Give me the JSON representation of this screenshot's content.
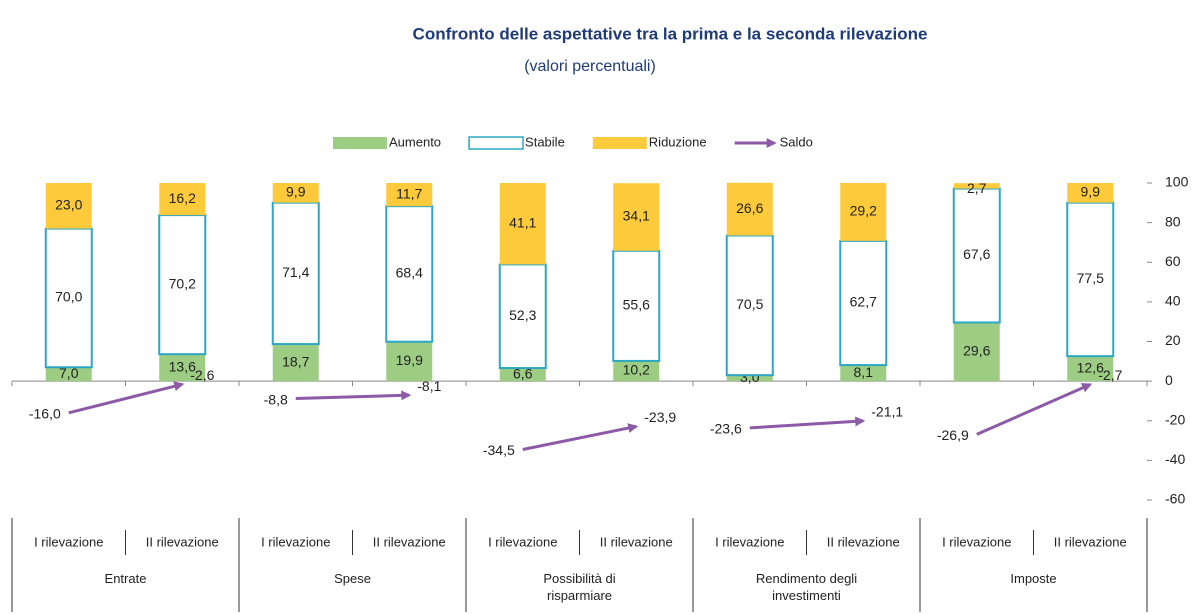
{
  "chart_data": {
    "type": "stacked_bar",
    "title": "Confronto delle aspettative tra la prima e la seconda rilevazione",
    "subtitle": "(valori percentuali)",
    "categories": [
      "I rilevazione",
      "II rilevazione",
      "I rilevazione",
      "II rilevazione",
      "I rilevazione",
      "II rilevazione",
      "I rilevazione",
      "II rilevazione",
      "I rilevazione",
      "II rilevazione"
    ],
    "groups": [
      "Entrate",
      "Spese",
      "Possibilità di risparmiare",
      "Rendimento degli investimenti",
      "Imposte"
    ],
    "series": [
      {
        "name": "Aumento",
        "color": "#9dcc83",
        "values": [
          7.0,
          13.6,
          18.7,
          19.9,
          6.6,
          10.2,
          3.0,
          8.1,
          29.6,
          12.6
        ],
        "value_labels": [
          "7,0",
          "13,6",
          "18,7",
          "19,9",
          "6,6",
          "10,2",
          "3,0",
          "8,1",
          "29,6",
          "12,6"
        ]
      },
      {
        "name": "Stabile",
        "color": "#2ba7c3",
        "values": [
          70.0,
          70.2,
          71.4,
          68.4,
          52.3,
          55.6,
          70.5,
          62.7,
          67.6,
          77.5
        ],
        "value_labels": [
          "70,0",
          "70,2",
          "71,4",
          "68,4",
          "52,3",
          "55,6",
          "70,5",
          "62,7",
          "67,6",
          "77,5"
        ]
      },
      {
        "name": "Riduzione",
        "color": "#fdca3c",
        "values": [
          23.0,
          16.2,
          9.9,
          11.7,
          41.1,
          34.1,
          26.6,
          29.2,
          2.7,
          9.9
        ],
        "value_labels": [
          "23,0",
          "16,2",
          "9,9",
          "11,7",
          "41,1",
          "34,1",
          "26,6",
          "29,2",
          "2,7",
          "9,9"
        ]
      },
      {
        "name": "Saldo",
        "color": "#8c5aa6",
        "values": [
          -16.0,
          -2.6,
          -8.8,
          -8.1,
          -34.5,
          -23.9,
          -23.6,
          -21.1,
          -26.9,
          -2.7
        ],
        "value_labels": [
          "-16,0",
          "-2,6",
          "-8,8",
          "-8,1",
          "-34,5",
          "-23,9",
          "-23,6",
          "-21,1",
          "-26,9",
          "-2,7"
        ]
      }
    ],
    "ylim": [
      -60,
      100
    ],
    "yticks": [
      -60,
      -40,
      -20,
      0,
      20,
      40,
      60,
      80,
      100
    ]
  }
}
